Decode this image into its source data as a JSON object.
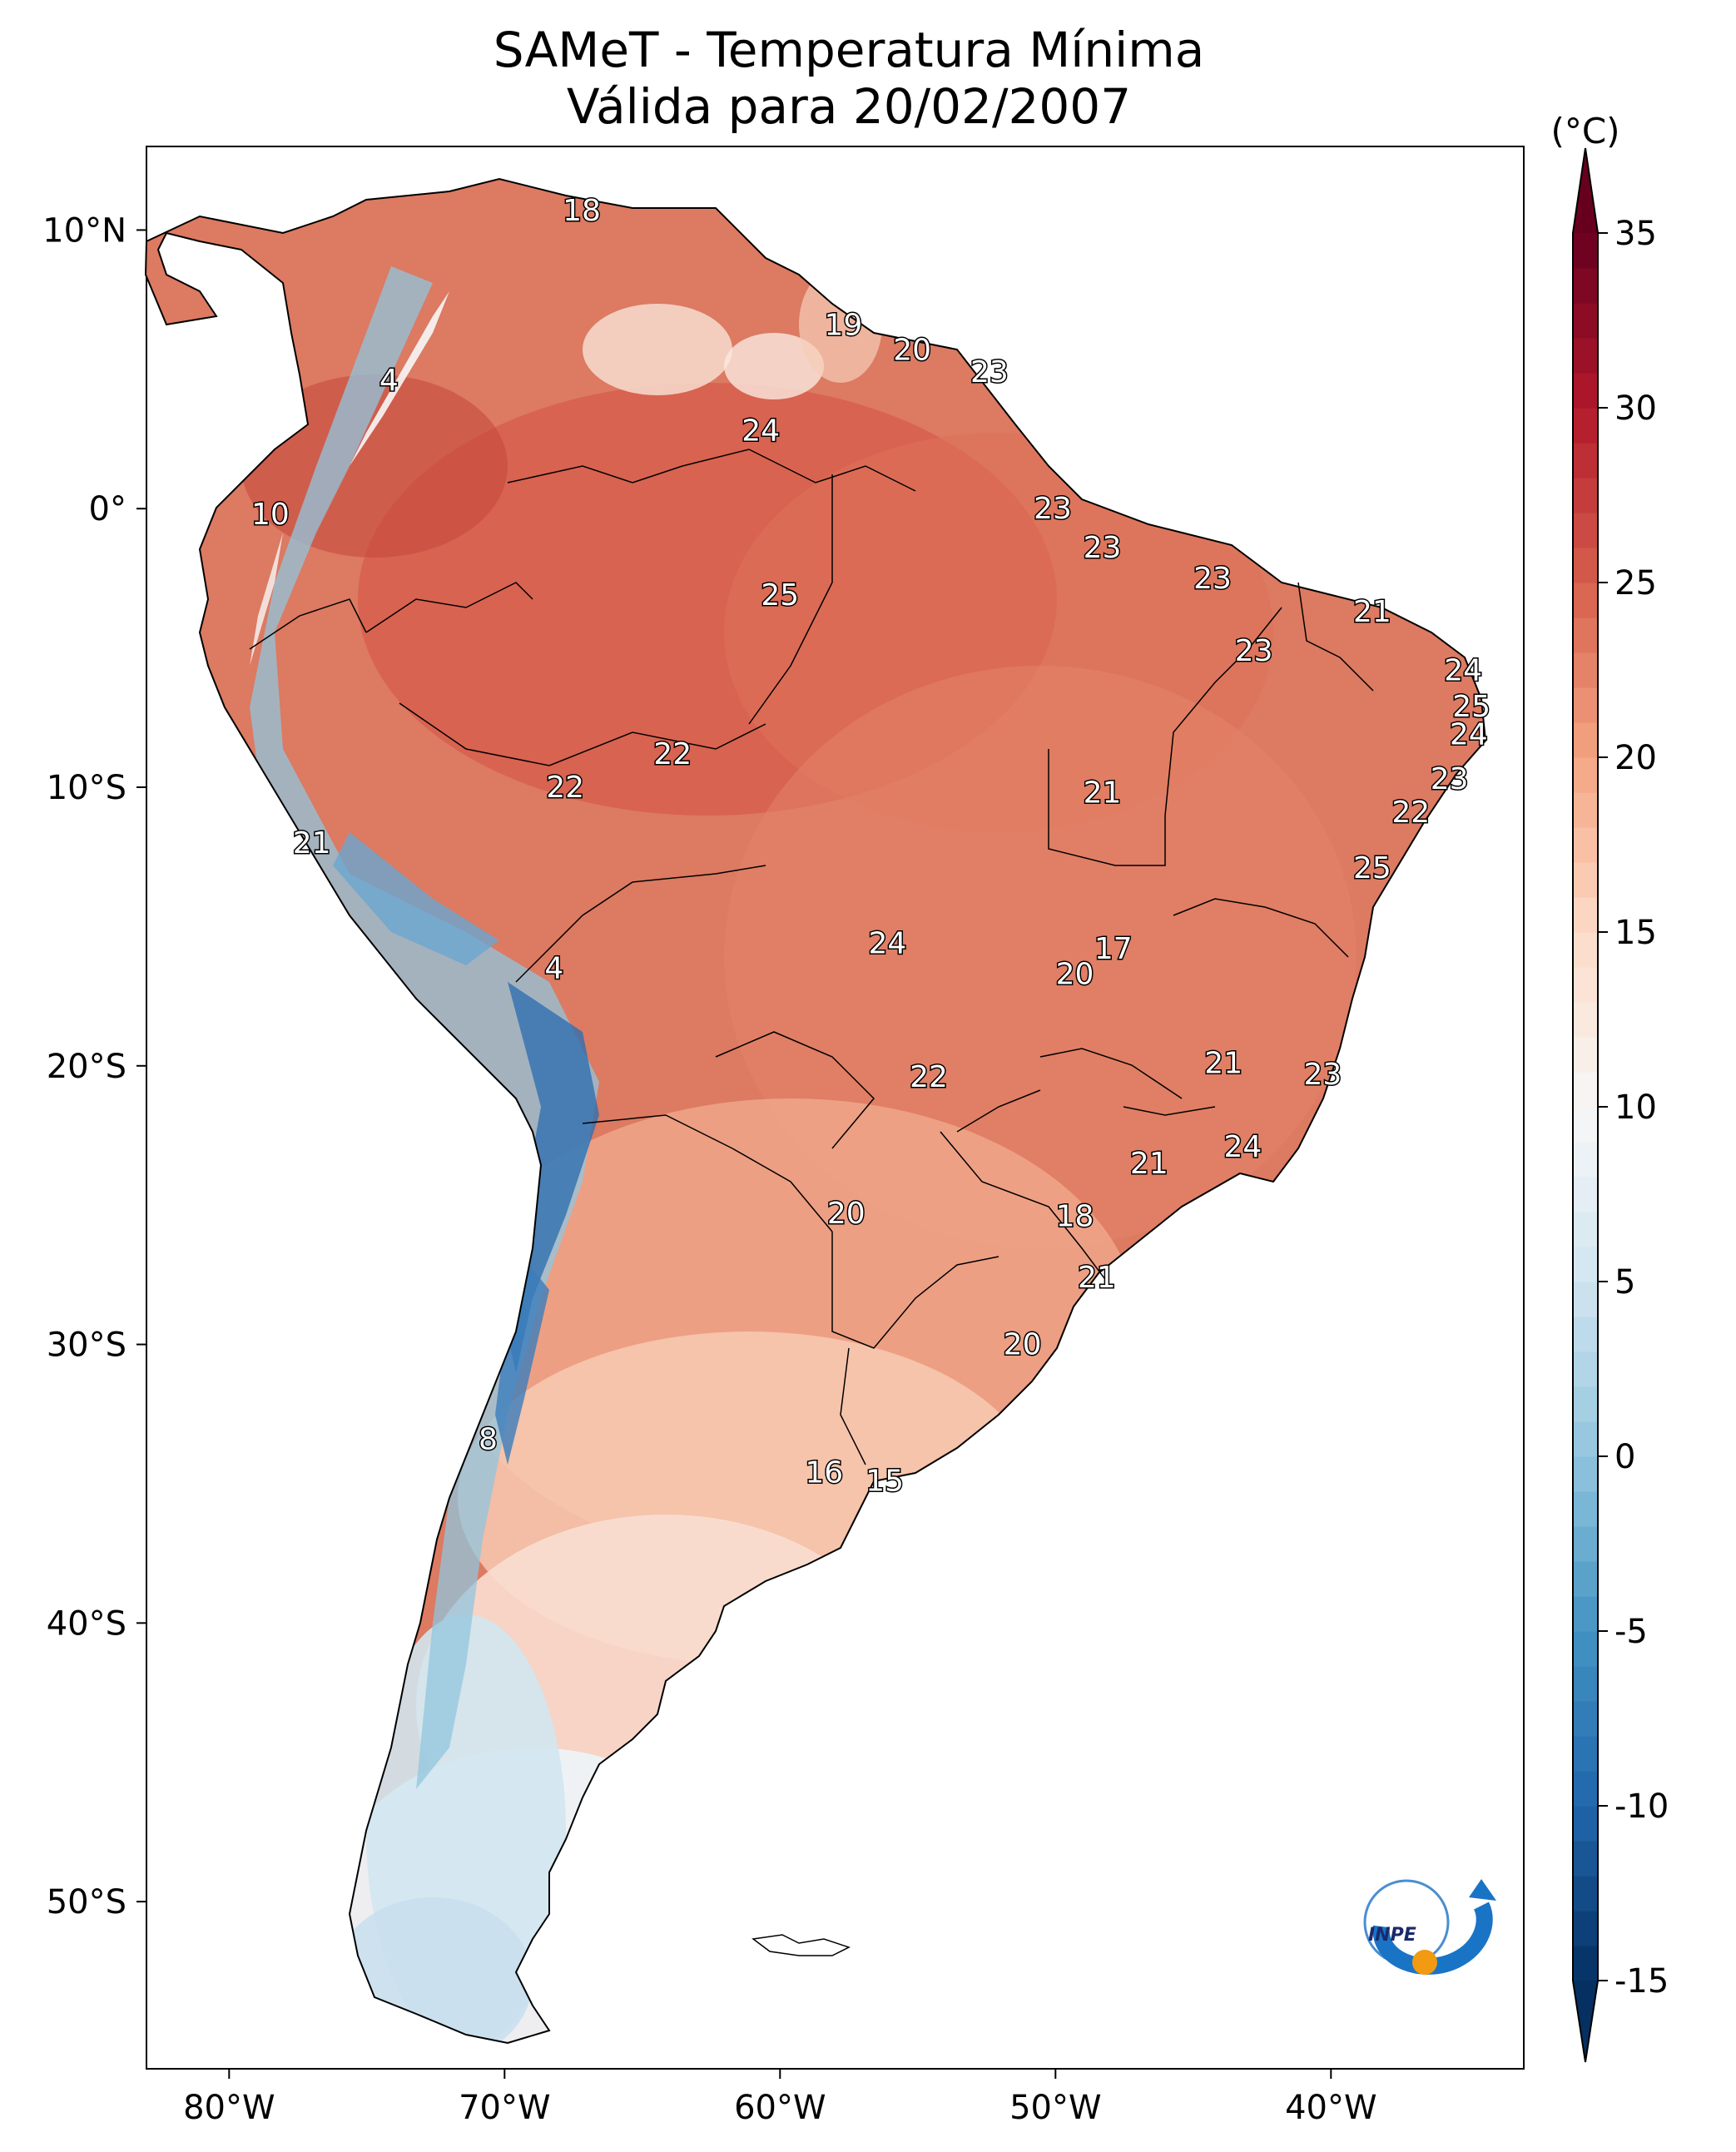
{
  "title": "SAMeT - Temperatura Mínima",
  "subtitle": "Válida para 20/02/2007",
  "colorbar": {
    "unit": "(°C)",
    "min": -15,
    "max": 35,
    "ticks": [
      "35",
      "30",
      "25",
      "20",
      "15",
      "10",
      "5",
      "0",
      "-5",
      "-10",
      "-15"
    ],
    "colors": [
      "#053061",
      "#2166ac",
      "#4393c3",
      "#92c5de",
      "#d1e5f0",
      "#f7f7f7",
      "#fddbc7",
      "#f4a582",
      "#d6604d",
      "#b2182b",
      "#67001f"
    ]
  },
  "axes": {
    "lon_labels": [
      "80°W",
      "70°W",
      "60°W",
      "50°W",
      "40°W"
    ],
    "lat_labels": [
      "10°N",
      "0°",
      "10°S",
      "20°S",
      "30°S",
      "40°S",
      "50°S"
    ],
    "lon_range": [
      -83,
      -33
    ],
    "lat_range": [
      -56,
      13
    ]
  },
  "station_values": [
    {
      "lon": -67.2,
      "lat": 10.7,
      "value": 18
    },
    {
      "lon": -57.7,
      "lat": 6.6,
      "value": 19
    },
    {
      "lon": -55.2,
      "lat": 5.7,
      "value": 20
    },
    {
      "lon": -52.4,
      "lat": 4.9,
      "value": 23
    },
    {
      "lon": -74.2,
      "lat": 4.6,
      "value": 4
    },
    {
      "lon": -60.7,
      "lat": 2.8,
      "value": 24
    },
    {
      "lon": -78.5,
      "lat": -0.2,
      "value": 10
    },
    {
      "lon": -50.1,
      "lat": 0.0,
      "value": 23
    },
    {
      "lon": -48.3,
      "lat": -1.4,
      "value": 23
    },
    {
      "lon": -60.0,
      "lat": -3.1,
      "value": 25
    },
    {
      "lon": -44.3,
      "lat": -2.5,
      "value": 23
    },
    {
      "lon": -38.5,
      "lat": -3.7,
      "value": 21
    },
    {
      "lon": -42.8,
      "lat": -5.1,
      "value": 23
    },
    {
      "lon": -35.2,
      "lat": -5.8,
      "value": 24
    },
    {
      "lon": -34.9,
      "lat": -7.1,
      "value": 25
    },
    {
      "lon": -35.0,
      "lat": -8.1,
      "value": 24
    },
    {
      "lon": -63.9,
      "lat": -8.8,
      "value": 22
    },
    {
      "lon": -67.8,
      "lat": -10.0,
      "value": 22
    },
    {
      "lon": -35.7,
      "lat": -9.7,
      "value": 23
    },
    {
      "lon": -48.3,
      "lat": -10.2,
      "value": 21
    },
    {
      "lon": -37.1,
      "lat": -10.9,
      "value": 22
    },
    {
      "lon": -77.0,
      "lat": -12.0,
      "value": 21
    },
    {
      "lon": -38.5,
      "lat": -12.9,
      "value": 25
    },
    {
      "lon": -56.1,
      "lat": -15.6,
      "value": 24
    },
    {
      "lon": -47.9,
      "lat": -15.8,
      "value": 17
    },
    {
      "lon": -68.2,
      "lat": -16.5,
      "value": 4
    },
    {
      "lon": -49.3,
      "lat": -16.7,
      "value": 20
    },
    {
      "lon": -43.9,
      "lat": -19.9,
      "value": 21
    },
    {
      "lon": -54.6,
      "lat": -20.4,
      "value": 22
    },
    {
      "lon": -40.3,
      "lat": -20.3,
      "value": 23
    },
    {
      "lon": -43.2,
      "lat": -22.9,
      "value": 24
    },
    {
      "lon": -46.6,
      "lat": -23.5,
      "value": 21
    },
    {
      "lon": -57.6,
      "lat": -25.3,
      "value": 20
    },
    {
      "lon": -49.3,
      "lat": -25.4,
      "value": 18
    },
    {
      "lon": -48.5,
      "lat": -27.6,
      "value": 21
    },
    {
      "lon": -51.2,
      "lat": -30.0,
      "value": 20
    },
    {
      "lon": -70.6,
      "lat": -33.4,
      "value": 8
    },
    {
      "lon": -58.4,
      "lat": -34.6,
      "value": 16
    },
    {
      "lon": -56.2,
      "lat": -34.9,
      "value": 15
    }
  ]
}
